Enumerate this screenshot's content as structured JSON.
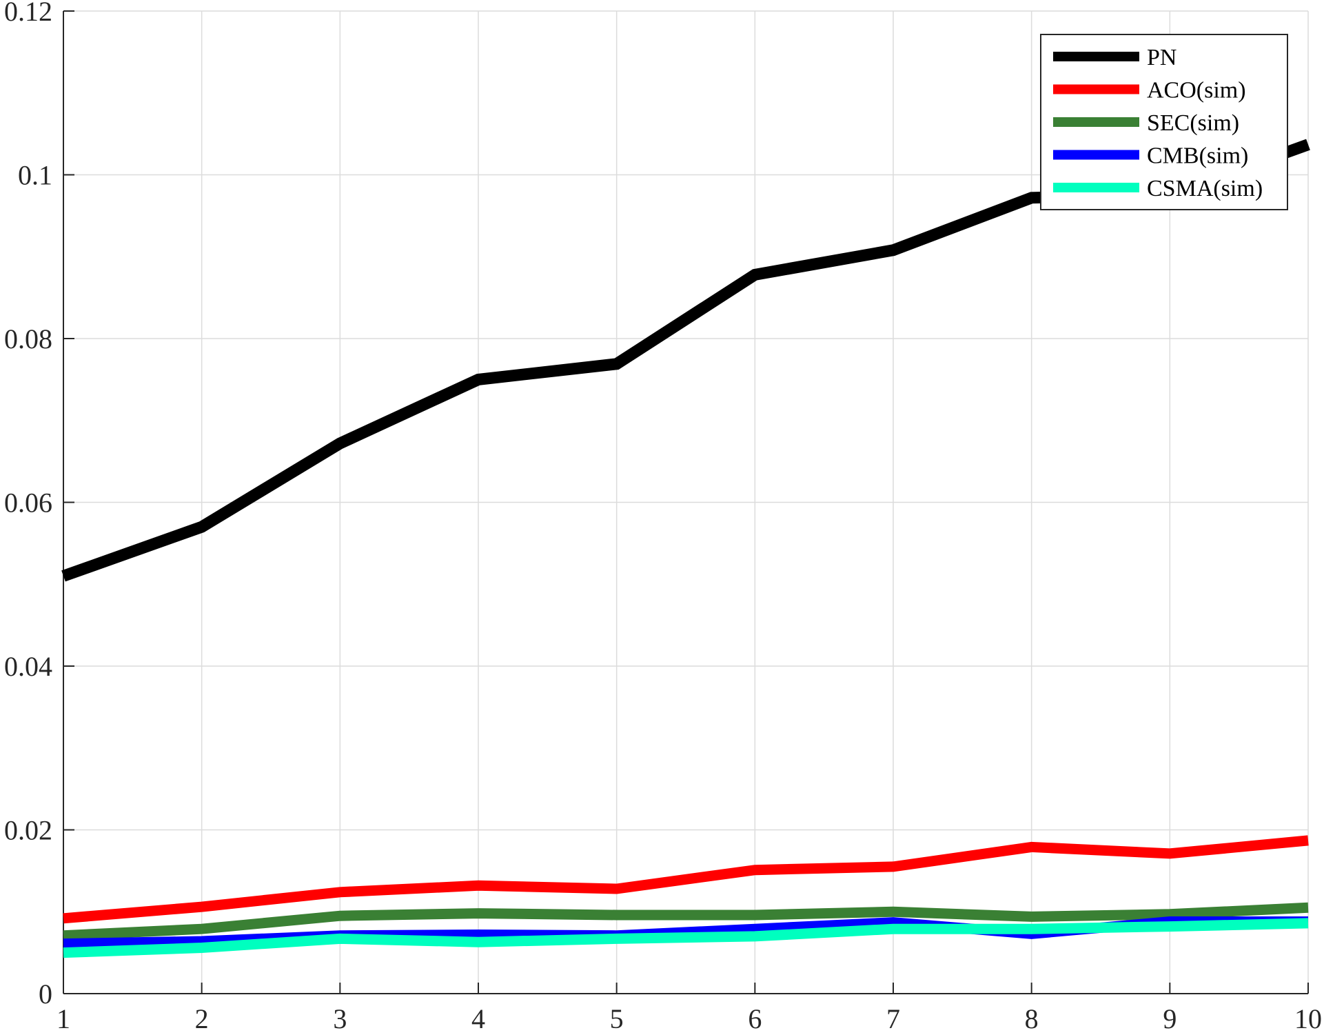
{
  "chart_data": {
    "type": "line",
    "title": "",
    "xlabel": "",
    "ylabel": "",
    "x": [
      1,
      2,
      3,
      4,
      5,
      6,
      7,
      8,
      9,
      10
    ],
    "xlim": [
      1,
      10
    ],
    "ylim": [
      0,
      0.12
    ],
    "x_ticks": [
      1,
      2,
      3,
      4,
      5,
      6,
      7,
      8,
      9,
      10
    ],
    "x_tick_labels": [
      "1",
      "2",
      "3",
      "4",
      "5",
      "6",
      "7",
      "8",
      "9",
      "10"
    ],
    "y_ticks": [
      0,
      0.02,
      0.04,
      0.06,
      0.08,
      0.1,
      0.12
    ],
    "y_tick_labels": [
      "0",
      "0.02",
      "0.04",
      "0.06",
      "0.08",
      "0.1",
      "0.12"
    ],
    "grid": true,
    "legend_position": "top-right",
    "series": [
      {
        "name": "PN",
        "color": "#000000",
        "values": [
          0.051,
          0.057,
          0.0672,
          0.075,
          0.0769,
          0.0878,
          0.0908,
          0.0972,
          0.0976,
          0.1037
        ]
      },
      {
        "name": "ACO(sim)",
        "color": "#ff0000",
        "values": [
          0.0092,
          0.0106,
          0.0124,
          0.0132,
          0.0128,
          0.0151,
          0.0155,
          0.0179,
          0.0171,
          0.0187
        ]
      },
      {
        "name": "SEC(sim)",
        "color": "#3a8034",
        "values": [
          0.0071,
          0.0079,
          0.0095,
          0.0098,
          0.0096,
          0.0096,
          0.01,
          0.0094,
          0.0097,
          0.0105
        ]
      },
      {
        "name": "CMB(sim)",
        "color": "#0000ff",
        "values": [
          0.0061,
          0.0064,
          0.0071,
          0.0072,
          0.0071,
          0.0079,
          0.0087,
          0.0073,
          0.0088,
          0.0088
        ]
      },
      {
        "name": "CSMA(sim)",
        "color": "#00ffbf",
        "values": [
          0.005,
          0.0056,
          0.0067,
          0.0063,
          0.0067,
          0.007,
          0.0079,
          0.0079,
          0.0082,
          0.0086
        ]
      }
    ]
  }
}
